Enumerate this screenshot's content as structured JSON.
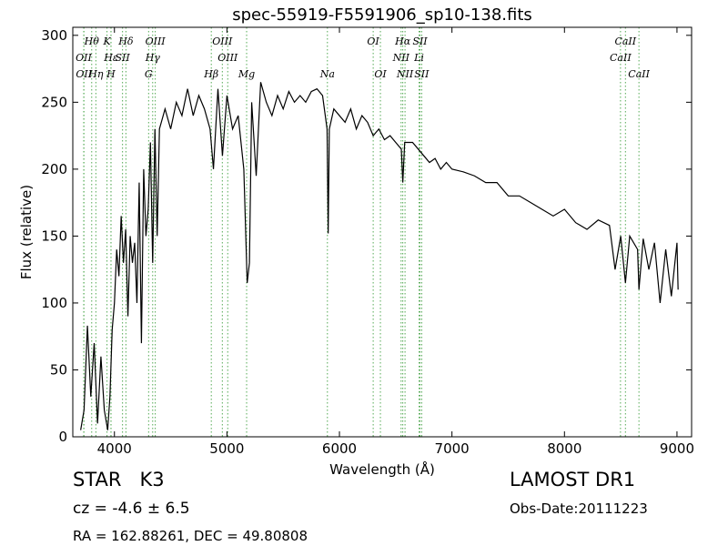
{
  "chart_data": {
    "type": "line",
    "title": "spec-55919-F5591906_sp10-138.fits",
    "xlabel": "Wavelength (Å)",
    "ylabel": "Flux (relative)",
    "xlim": [
      3630,
      9130
    ],
    "ylim": [
      0,
      306
    ],
    "xticks": [
      4000,
      5000,
      6000,
      7000,
      8000,
      9000
    ],
    "yticks": [
      0,
      50,
      100,
      150,
      200,
      250,
      300
    ],
    "line_color": "#55aa55",
    "x": [
      3700,
      3730,
      3760,
      3790,
      3820,
      3850,
      3880,
      3910,
      3940,
      3960,
      3980,
      4000,
      4020,
      4040,
      4060,
      4080,
      4100,
      4120,
      4140,
      4160,
      4180,
      4200,
      4220,
      4240,
      4260,
      4280,
      4300,
      4320,
      4340,
      4360,
      4380,
      4400,
      4450,
      4500,
      4550,
      4600,
      4650,
      4700,
      4750,
      4800,
      4850,
      4880,
      4920,
      4960,
      5000,
      5050,
      5100,
      5150,
      5180,
      5200,
      5220,
      5260,
      5300,
      5350,
      5400,
      5450,
      5500,
      5550,
      5600,
      5650,
      5700,
      5750,
      5800,
      5850,
      5890,
      5900,
      5910,
      5950,
      6000,
      6050,
      6100,
      6150,
      6200,
      6250,
      6300,
      6350,
      6400,
      6450,
      6500,
      6550,
      6563,
      6580,
      6650,
      6700,
      6750,
      6800,
      6850,
      6900,
      6950,
      7000,
      7100,
      7200,
      7300,
      7400,
      7500,
      7600,
      7700,
      7800,
      7900,
      8000,
      8100,
      8200,
      8300,
      8400,
      8450,
      8500,
      8542,
      8580,
      8650,
      8662,
      8700,
      8750,
      8800,
      8850,
      8900,
      8950,
      9000,
      9010
    ],
    "series": [
      {
        "name": "flux",
        "color": "#000000",
        "values": [
          5,
          20,
          83,
          30,
          70,
          10,
          60,
          20,
          5,
          30,
          80,
          100,
          140,
          120,
          165,
          130,
          155,
          90,
          150,
          130,
          145,
          100,
          190,
          70,
          200,
          150,
          170,
          220,
          130,
          230,
          150,
          230,
          245,
          230,
          250,
          240,
          260,
          240,
          255,
          245,
          230,
          200,
          260,
          210,
          255,
          230,
          240,
          200,
          115,
          130,
          250,
          195,
          265,
          250,
          240,
          255,
          245,
          258,
          250,
          255,
          250,
          258,
          260,
          255,
          230,
          152,
          230,
          245,
          240,
          235,
          245,
          230,
          240,
          235,
          225,
          230,
          222,
          225,
          220,
          215,
          190,
          220,
          220,
          215,
          210,
          205,
          208,
          200,
          205,
          200,
          198,
          195,
          190,
          190,
          180,
          180,
          175,
          170,
          165,
          170,
          160,
          155,
          162,
          158,
          125,
          150,
          115,
          150,
          140,
          110,
          148,
          125,
          145,
          100,
          140,
          105,
          145,
          110
        ]
      }
    ],
    "spectral_lines": [
      [
        {
          "label": "Hθ",
          "wavelength": 3798
        },
        {
          "label": "K",
          "wavelength": 3934
        },
        {
          "label": "Hδ",
          "wavelength": 4102
        },
        {
          "label": "OIII",
          "wavelength": 4363
        },
        {
          "label": "OIII",
          "wavelength": 4959
        },
        {
          "label": "OI",
          "wavelength": 6300
        },
        {
          "label": "Hα",
          "wavelength": 6563
        },
        {
          "label": "SII",
          "wavelength": 6716
        },
        {
          "label": "CaII",
          "wavelength": 8542
        }
      ],
      [
        {
          "label": "OII",
          "wavelength": 3727
        },
        {
          "label": "Hε",
          "wavelength": 3970
        },
        {
          "label": "SII",
          "wavelength": 4072
        },
        {
          "label": "Hγ",
          "wavelength": 4340
        },
        {
          "label": "OIII",
          "wavelength": 5007
        },
        {
          "label": "NII",
          "wavelength": 6548
        },
        {
          "label": "Li",
          "wavelength": 6708
        },
        {
          "label": "CaII",
          "wavelength": 8498
        }
      ],
      [
        {
          "label": "OII",
          "wavelength": 3729
        },
        {
          "label": "Hη",
          "wavelength": 3835
        },
        {
          "label": "H",
          "wavelength": 3969
        },
        {
          "label": "G",
          "wavelength": 4304
        },
        {
          "label": "Hβ",
          "wavelength": 4861
        },
        {
          "label": "Mg",
          "wavelength": 5175
        },
        {
          "label": "Na",
          "wavelength": 5893
        },
        {
          "label": "OI",
          "wavelength": 6364
        },
        {
          "label": "NII",
          "wavelength": 6583
        },
        {
          "label": "SII",
          "wavelength": 6731
        },
        {
          "label": "CaII",
          "wavelength": 8662
        }
      ]
    ]
  },
  "footer": {
    "object": "STAR   K3",
    "cz": "cz = -4.6 ± 6.5",
    "coords": "RA = 162.88261, DEC = 49.80808",
    "survey": "LAMOST DR1",
    "obs_date": "Obs-Date:20111223"
  }
}
